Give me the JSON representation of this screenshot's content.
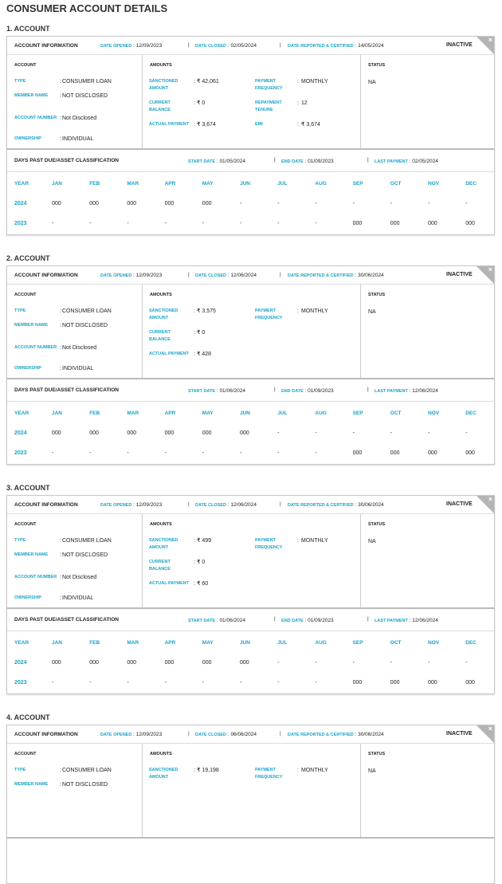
{
  "title": "CONSUMER ACCOUNT DETAILS",
  "labels": {
    "account_info": "ACCOUNT INFORMATION",
    "date_opened": "DATE OPENED",
    "date_closed": "DATE CLOSED",
    "date_reported": "DATE REPORTED & CERTIFIED",
    "account": "ACCOUNT",
    "amounts": "AMOUNTS",
    "status": "STATUS",
    "type": "TYPE",
    "member_name": "MEMBER NAME",
    "account_number": "ACCOUNT NUMBER",
    "ownership": "OWNERSHIP",
    "sanctioned": "SANCTIONED AMOUNT",
    "current_balance": "CURRENT BALANCE",
    "actual_payment": "ACTUAL PAYMENT",
    "payment_frequency": "PAYMENT FREQUENCY",
    "repayment_tenure": "REPAYMENT TENURE",
    "emi": "EMI",
    "dpd": "DAYS PAST DUE/ASSET CLASSIFICATION",
    "start_date": "START DATE",
    "end_date": "END DATE",
    "last_payment": "LAST PAYMENT",
    "year": "YEAR",
    "months": [
      "JAN",
      "FEB",
      "MAR",
      "APR",
      "MAY",
      "JUN",
      "JUL",
      "AUG",
      "SEP",
      "OCT",
      "NOV",
      "DEC"
    ],
    "close": "×"
  },
  "accounts": [
    {
      "heading": "1. ACCOUNT",
      "date_opened": "12/09/2023",
      "date_closed": "02/05/2024",
      "date_reported": "14/05/2024",
      "state": "INACTIVE",
      "type": "CONSUMER LOAN",
      "member_name": "NOT DISCLOSED",
      "account_number": "Not Disclosed",
      "ownership": "INDIVIDUAL",
      "sanctioned": "₹ 42,061",
      "current_balance": "₹ 0",
      "actual_payment": "₹ 3,674",
      "payment_frequency": "MONTHLY",
      "repayment_tenure": "12",
      "emi": "₹ 3,674",
      "status": "NA",
      "start_date": "01/05/2024",
      "end_date": "01/09/2023",
      "last_payment": "02/05/2024",
      "dpd": [
        {
          "year": "2024",
          "values": [
            "000",
            "000",
            "000",
            "000",
            "000",
            "-",
            "-",
            "-",
            "-",
            "-",
            "-",
            "-"
          ]
        },
        {
          "year": "2023",
          "values": [
            "-",
            "-",
            "-",
            "-",
            "-",
            "-",
            "-",
            "-",
            "000",
            "000",
            "000",
            "000"
          ]
        }
      ]
    },
    {
      "heading": "2. ACCOUNT",
      "date_opened": "12/09/2023",
      "date_closed": "12/06/2024",
      "date_reported": "30/06/2024",
      "state": "INACTIVE",
      "type": "CONSUMER LOAN",
      "member_name": "NOT DISCLOSED",
      "account_number": "Not Disclosed",
      "ownership": "INDIVIDUAL",
      "sanctioned": "₹ 3,575",
      "current_balance": "₹ 0",
      "actual_payment": "₹ 428",
      "payment_frequency": "MONTHLY",
      "status": "NA",
      "start_date": "01/06/2024",
      "end_date": "01/09/2023",
      "last_payment": "12/06/2024",
      "dpd": [
        {
          "year": "2024",
          "values": [
            "000",
            "000",
            "000",
            "000",
            "000",
            "000",
            "-",
            "-",
            "-",
            "-",
            "-",
            "-"
          ]
        },
        {
          "year": "2023",
          "values": [
            "-",
            "-",
            "-",
            "-",
            "-",
            "-",
            "-",
            "-",
            "000",
            "000",
            "000",
            "000"
          ]
        }
      ]
    },
    {
      "heading": "3. ACCOUNT",
      "date_opened": "12/09/2023",
      "date_closed": "12/06/2024",
      "date_reported": "30/06/2024",
      "state": "INACTIVE",
      "type": "CONSUMER LOAN",
      "member_name": "NOT DISCLOSED",
      "account_number": "Not Disclosed",
      "ownership": "INDIVIDUAL",
      "sanctioned": "₹ 499",
      "current_balance": "₹ 0",
      "actual_payment": "₹ 60",
      "payment_frequency": "MONTHLY",
      "status": "NA",
      "start_date": "01/06/2024",
      "end_date": "01/09/2023",
      "last_payment": "12/06/2024",
      "dpd": [
        {
          "year": "2024",
          "values": [
            "000",
            "000",
            "000",
            "000",
            "000",
            "000",
            "-",
            "-",
            "-",
            "-",
            "-",
            "-"
          ]
        },
        {
          "year": "2023",
          "values": [
            "-",
            "-",
            "-",
            "-",
            "-",
            "-",
            "-",
            "-",
            "000",
            "000",
            "000",
            "000"
          ]
        }
      ]
    },
    {
      "heading": "4. ACCOUNT",
      "date_opened": "12/09/2023",
      "date_closed": "06/06/2024",
      "date_reported": "30/06/2024",
      "state": "INACTIVE",
      "type": "CONSUMER LOAN",
      "member_name": "NOT DISCLOSED",
      "sanctioned": "₹ 19,198",
      "payment_frequency": "MONTHLY",
      "status": "NA"
    }
  ]
}
